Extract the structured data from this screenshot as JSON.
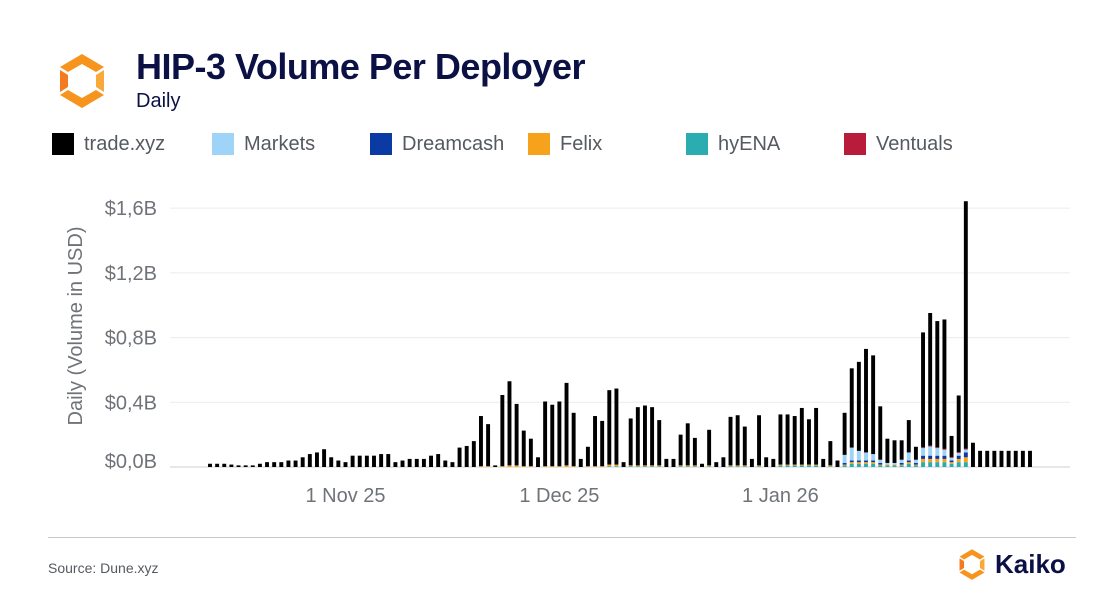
{
  "header": {
    "title": "HIP-3 Volume Per Deployer",
    "subtitle": "Daily"
  },
  "colors": {
    "trade_xyz": "#000000",
    "markets": "#9fd3f7",
    "dreamcash": "#0a3aa3",
    "felix": "#f7a21b",
    "hyena": "#2aacb0",
    "ventuals": "#b81c3a",
    "brand_orange": "#f7941d"
  },
  "footer": {
    "source": "Source: Dune.xyz",
    "brand": "Kaiko"
  },
  "chart_data": {
    "type": "bar",
    "stacked": true,
    "title": "HIP-3 Volume Per Deployer",
    "subtitle": "Daily",
    "ylabel": "Daily (Volume in USD)",
    "ylim": [
      0,
      1.7
    ],
    "y_unit": "$B",
    "y_ticks": [
      0,
      0.4,
      0.8,
      1.2,
      1.6
    ],
    "y_tick_labels": [
      "$0,0B",
      "$0,4B",
      "$0,8B",
      "$1,2B",
      "$1,6B"
    ],
    "x_tick_labels": [
      {
        "date": "2025-11-01",
        "label": "1 Nov 25"
      },
      {
        "date": "2025-12-01",
        "label": "1 Dec 25"
      },
      {
        "date": "2026-01-01",
        "label": "1 Jan 26"
      }
    ],
    "legend_position": "top",
    "grid": true,
    "categories": [
      "2025-10-13",
      "2025-10-14",
      "2025-10-15",
      "2025-10-16",
      "2025-10-17",
      "2025-10-18",
      "2025-10-19",
      "2025-10-20",
      "2025-10-21",
      "2025-10-22",
      "2025-10-23",
      "2025-10-24",
      "2025-10-25",
      "2025-10-26",
      "2025-10-27",
      "2025-10-28",
      "2025-10-29",
      "2025-10-30",
      "2025-10-31",
      "2025-11-01",
      "2025-11-02",
      "2025-11-03",
      "2025-11-04",
      "2025-11-05",
      "2025-11-06",
      "2025-11-07",
      "2025-11-08",
      "2025-11-09",
      "2025-11-10",
      "2025-11-11",
      "2025-11-12",
      "2025-11-13",
      "2025-11-14",
      "2025-11-15",
      "2025-11-16",
      "2025-11-17",
      "2025-11-18",
      "2025-11-19",
      "2025-11-20",
      "2025-11-21",
      "2025-11-22",
      "2025-11-23",
      "2025-11-24",
      "2025-11-25",
      "2025-11-26",
      "2025-11-27",
      "2025-11-28",
      "2025-11-29",
      "2025-11-30",
      "2025-12-01",
      "2025-12-02",
      "2025-12-03",
      "2025-12-04",
      "2025-12-05",
      "2025-12-06",
      "2025-12-07",
      "2025-12-08",
      "2025-12-09",
      "2025-12-10",
      "2025-12-11",
      "2025-12-12",
      "2025-12-13",
      "2025-12-14",
      "2025-12-15",
      "2025-12-16",
      "2025-12-17",
      "2025-12-18",
      "2025-12-19",
      "2025-12-20",
      "2025-12-21",
      "2025-12-22",
      "2025-12-23",
      "2025-12-24",
      "2025-12-25",
      "2025-12-26",
      "2025-12-27",
      "2025-12-28",
      "2025-12-29",
      "2025-12-30",
      "2025-12-31",
      "2026-01-01",
      "2026-01-02",
      "2026-01-03",
      "2026-01-04",
      "2026-01-05",
      "2026-01-06",
      "2026-01-07",
      "2026-01-08",
      "2026-01-09",
      "2026-01-10",
      "2026-01-11",
      "2026-01-12",
      "2026-01-13",
      "2026-01-14",
      "2026-01-15",
      "2026-01-16",
      "2026-01-17",
      "2026-01-18",
      "2026-01-19",
      "2026-01-20",
      "2026-01-21",
      "2026-01-22",
      "2026-01-23",
      "2026-01-24",
      "2026-01-25",
      "2026-01-26",
      "2026-01-27",
      "2026-01-28",
      "2026-01-29",
      "2026-01-30",
      "2026-01-31",
      "2026-02-01",
      "2026-02-02",
      "2026-02-03",
      "2026-02-04",
      "2026-02-05"
    ],
    "series": [
      {
        "name": "trade.xyz",
        "color": "#000000",
        "values": [
          0.02,
          0.02,
          0.02,
          0.015,
          0.01,
          0.01,
          0.01,
          0.02,
          0.03,
          0.03,
          0.03,
          0.04,
          0.04,
          0.06,
          0.08,
          0.09,
          0.11,
          0.06,
          0.04,
          0.03,
          0.07,
          0.07,
          0.07,
          0.07,
          0.08,
          0.08,
          0.03,
          0.04,
          0.05,
          0.05,
          0.05,
          0.07,
          0.08,
          0.04,
          0.03,
          0.12,
          0.13,
          0.16,
          0.31,
          0.26,
          0.01,
          0.44,
          0.52,
          0.38,
          0.22,
          0.17,
          0.06,
          0.4,
          0.38,
          0.4,
          0.51,
          0.33,
          0.05,
          0.12,
          0.31,
          0.28,
          0.46,
          0.47,
          0.03,
          0.29,
          0.36,
          0.37,
          0.36,
          0.28,
          0.05,
          0.05,
          0.19,
          0.26,
          0.17,
          0.02,
          0.22,
          0.03,
          0.06,
          0.3,
          0.31,
          0.24,
          0.05,
          0.31,
          0.06,
          0.05,
          0.31,
          0.31,
          0.3,
          0.35,
          0.28,
          0.35,
          0.05,
          0.15,
          0.04,
          0.26,
          0.49,
          0.55,
          0.64,
          0.61,
          0.33,
          0.15,
          0.14,
          0.12,
          0.2,
          0.08,
          0.71,
          0.82,
          0.78,
          0.8,
          0.13,
          0.35,
          1.53,
          0.15,
          0.1,
          0.1,
          0.1,
          0.1,
          0.1,
          0.1,
          0.1,
          0.1
        ]
      },
      {
        "name": "Markets",
        "color": "#9fd3f7",
        "values": [
          0,
          0,
          0,
          0,
          0,
          0,
          0,
          0,
          0,
          0,
          0,
          0,
          0,
          0,
          0,
          0,
          0,
          0,
          0,
          0,
          0,
          0,
          0,
          0,
          0,
          0,
          0,
          0,
          0,
          0,
          0,
          0,
          0,
          0,
          0,
          0,
          0,
          0,
          0,
          0,
          0,
          0,
          0,
          0,
          0,
          0,
          0,
          0,
          0,
          0,
          0,
          0,
          0,
          0,
          0,
          0,
          0,
          0,
          0,
          0,
          0,
          0,
          0,
          0,
          0,
          0,
          0,
          0,
          0,
          0,
          0,
          0,
          0,
          0,
          0,
          0,
          0,
          0,
          0,
          0,
          0,
          0,
          0,
          0,
          0,
          0,
          0,
          0,
          0,
          0.05,
          0.08,
          0.06,
          0.05,
          0.04,
          0.02,
          0.01,
          0.01,
          0.02,
          0.05,
          0.02,
          0.05,
          0.06,
          0.05,
          0.04,
          0.02,
          0.02,
          0.02,
          0,
          0,
          0,
          0,
          0,
          0,
          0,
          0,
          0
        ]
      },
      {
        "name": "Dreamcash",
        "color": "#0a3aa3",
        "values": [
          0,
          0,
          0,
          0,
          0,
          0,
          0,
          0,
          0,
          0,
          0,
          0,
          0,
          0,
          0,
          0,
          0,
          0,
          0,
          0,
          0,
          0,
          0,
          0,
          0,
          0,
          0,
          0,
          0,
          0,
          0,
          0,
          0,
          0,
          0,
          0,
          0,
          0,
          0,
          0,
          0,
          0,
          0,
          0,
          0,
          0,
          0,
          0,
          0,
          0,
          0,
          0,
          0,
          0,
          0,
          0,
          0,
          0,
          0,
          0,
          0,
          0,
          0,
          0,
          0,
          0,
          0,
          0,
          0,
          0,
          0,
          0,
          0,
          0,
          0,
          0,
          0,
          0,
          0,
          0,
          0,
          0,
          0,
          0,
          0,
          0,
          0,
          0,
          0,
          0.01,
          0.01,
          0.01,
          0.01,
          0.01,
          0.01,
          0,
          0,
          0.01,
          0.01,
          0.01,
          0.02,
          0.02,
          0.02,
          0.02,
          0.01,
          0.02,
          0.03,
          0,
          0,
          0,
          0,
          0,
          0,
          0,
          0,
          0
        ]
      },
      {
        "name": "Felix",
        "color": "#f7a21b",
        "values": [
          0,
          0,
          0,
          0,
          0,
          0,
          0,
          0,
          0,
          0,
          0,
          0,
          0,
          0,
          0,
          0,
          0,
          0,
          0,
          0,
          0,
          0,
          0,
          0,
          0,
          0,
          0,
          0,
          0,
          0,
          0,
          0,
          0,
          0,
          0,
          0,
          0,
          0,
          0.005,
          0.005,
          0,
          0.005,
          0.01,
          0.01,
          0.005,
          0.005,
          0,
          0.005,
          0.005,
          0.005,
          0.01,
          0.005,
          0,
          0.005,
          0.005,
          0.005,
          0.01,
          0.01,
          0,
          0.005,
          0.005,
          0.005,
          0.005,
          0.005,
          0,
          0,
          0.005,
          0.005,
          0.005,
          0,
          0.005,
          0,
          0,
          0.005,
          0.005,
          0.005,
          0,
          0.005,
          0,
          0,
          0.005,
          0.005,
          0.005,
          0.005,
          0.005,
          0.005,
          0,
          0.005,
          0,
          0.005,
          0.01,
          0.01,
          0.01,
          0.01,
          0.005,
          0.005,
          0.005,
          0.005,
          0.01,
          0.005,
          0.02,
          0.02,
          0.02,
          0.02,
          0.01,
          0.02,
          0.03,
          0,
          0,
          0,
          0,
          0,
          0,
          0,
          0,
          0
        ]
      },
      {
        "name": "hyENA",
        "color": "#2aacb0",
        "values": [
          0,
          0,
          0,
          0,
          0,
          0,
          0,
          0,
          0,
          0,
          0,
          0,
          0,
          0,
          0,
          0,
          0,
          0,
          0,
          0,
          0,
          0,
          0,
          0,
          0,
          0,
          0,
          0,
          0,
          0,
          0,
          0,
          0,
          0,
          0,
          0,
          0,
          0,
          0,
          0,
          0,
          0,
          0,
          0,
          0,
          0,
          0,
          0,
          0,
          0,
          0,
          0,
          0,
          0,
          0,
          0,
          0.005,
          0.005,
          0,
          0.005,
          0.005,
          0.005,
          0.005,
          0.005,
          0,
          0,
          0.005,
          0.005,
          0.005,
          0,
          0.005,
          0,
          0,
          0.005,
          0.005,
          0.005,
          0,
          0.005,
          0,
          0,
          0.01,
          0.01,
          0.01,
          0.01,
          0.01,
          0.01,
          0,
          0.005,
          0,
          0.01,
          0.02,
          0.02,
          0.02,
          0.02,
          0.01,
          0.01,
          0.01,
          0.01,
          0.02,
          0.01,
          0.03,
          0.03,
          0.03,
          0.03,
          0.02,
          0.03,
          0.03,
          0,
          0,
          0,
          0,
          0,
          0,
          0,
          0,
          0
        ]
      },
      {
        "name": "Ventuals",
        "color": "#b81c3a",
        "values": [
          0,
          0,
          0,
          0,
          0,
          0,
          0,
          0,
          0,
          0,
          0,
          0,
          0,
          0,
          0,
          0,
          0,
          0,
          0,
          0,
          0,
          0,
          0,
          0,
          0,
          0,
          0,
          0,
          0,
          0,
          0,
          0,
          0,
          0,
          0,
          0,
          0,
          0,
          0,
          0,
          0,
          0,
          0,
          0,
          0,
          0,
          0,
          0,
          0,
          0,
          0,
          0,
          0,
          0,
          0,
          0,
          0,
          0,
          0,
          0,
          0,
          0,
          0,
          0,
          0,
          0,
          0,
          0,
          0,
          0,
          0,
          0,
          0,
          0,
          0,
          0,
          0,
          0,
          0,
          0,
          0,
          0,
          0,
          0,
          0,
          0,
          0,
          0,
          0,
          0,
          0,
          0,
          0,
          0,
          0,
          0,
          0,
          0,
          0,
          0,
          0.002,
          0.002,
          0.002,
          0.002,
          0.002,
          0.002,
          0.003,
          0,
          0,
          0,
          0,
          0,
          0,
          0,
          0,
          0
        ]
      }
    ]
  }
}
